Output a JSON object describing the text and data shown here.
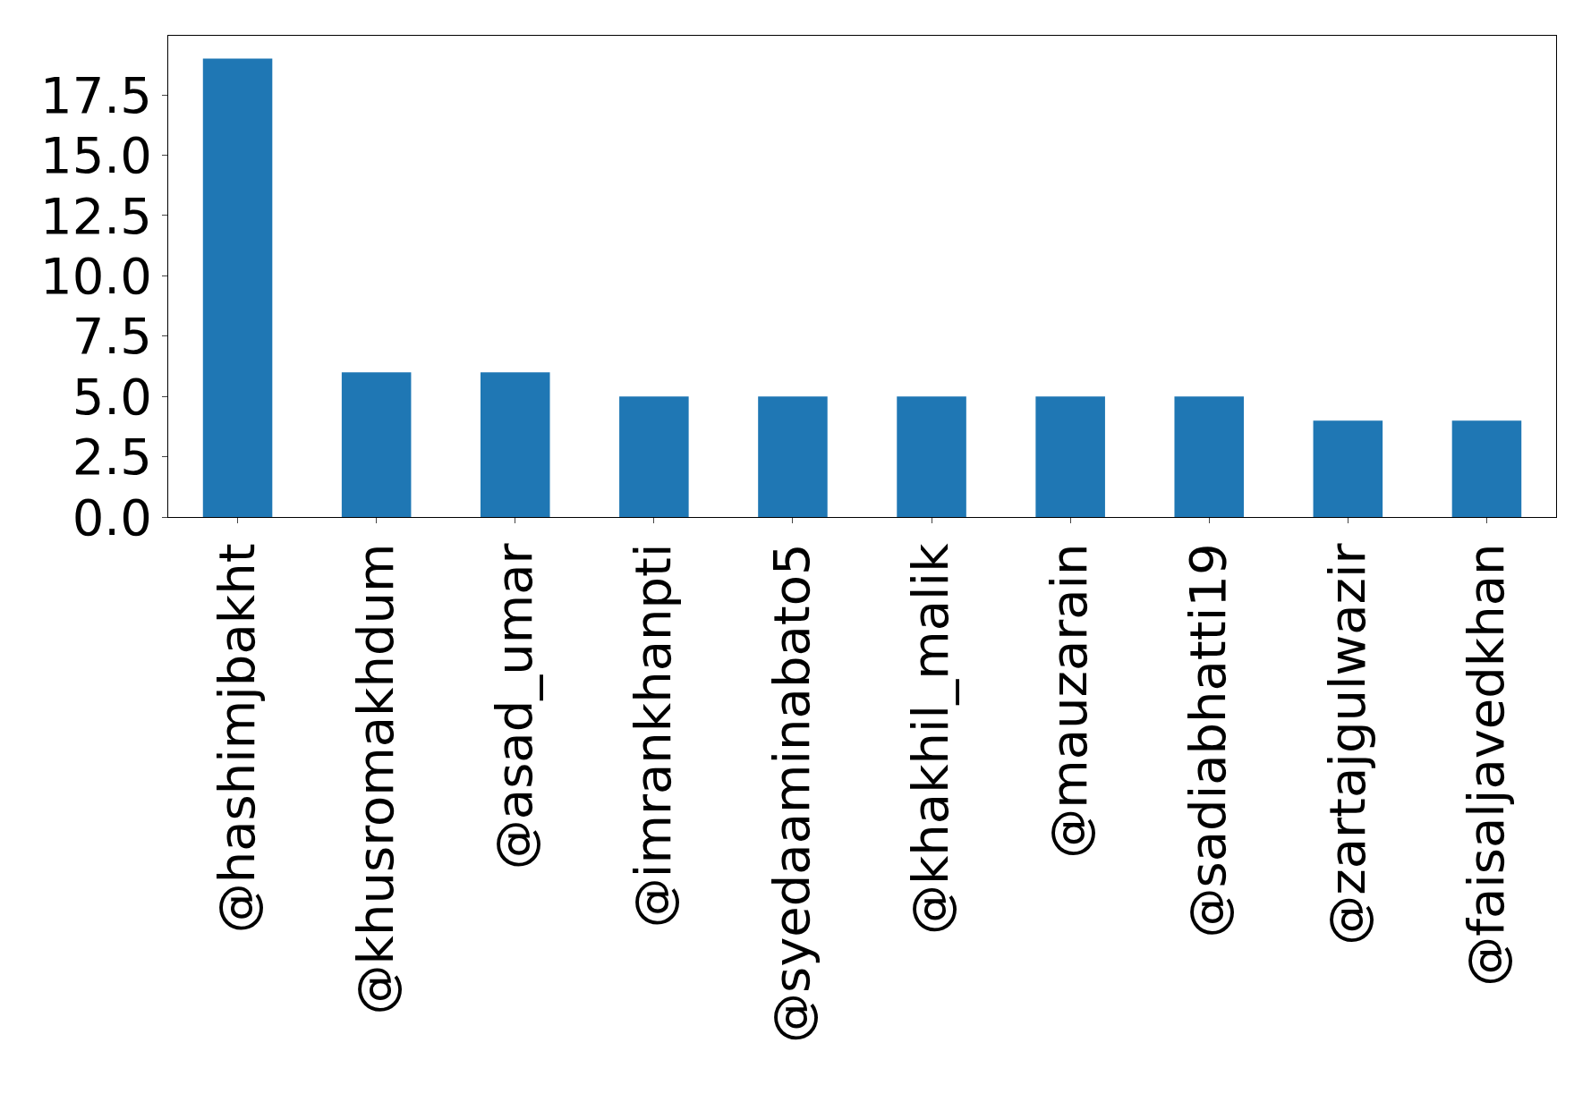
{
  "chart_data": {
    "type": "bar",
    "categories": [
      "@hashimjbakht",
      "@khusromakhdum",
      "@asad_umar",
      "@imrankhanpti",
      "@syedaaminabato5",
      "@khakhil_malik",
      "@mauzarain",
      "@sadiabhatti19",
      "@zartajgulwazir",
      "@faisaljavedkhan"
    ],
    "values": [
      19,
      6,
      6,
      5,
      5,
      5,
      5,
      5,
      4,
      4
    ],
    "color": "#1f77b4",
    "ylim": [
      0,
      19.95
    ],
    "yticks": [
      {
        "value": 0,
        "label": "0.0"
      },
      2.5,
      {
        "value": 5,
        "label": "5.0"
      },
      7.5,
      {
        "value": 10,
        "label": "10.0"
      },
      12.5,
      {
        "value": 15,
        "label": "15.0"
      },
      17.5
    ],
    "legend": false
  }
}
